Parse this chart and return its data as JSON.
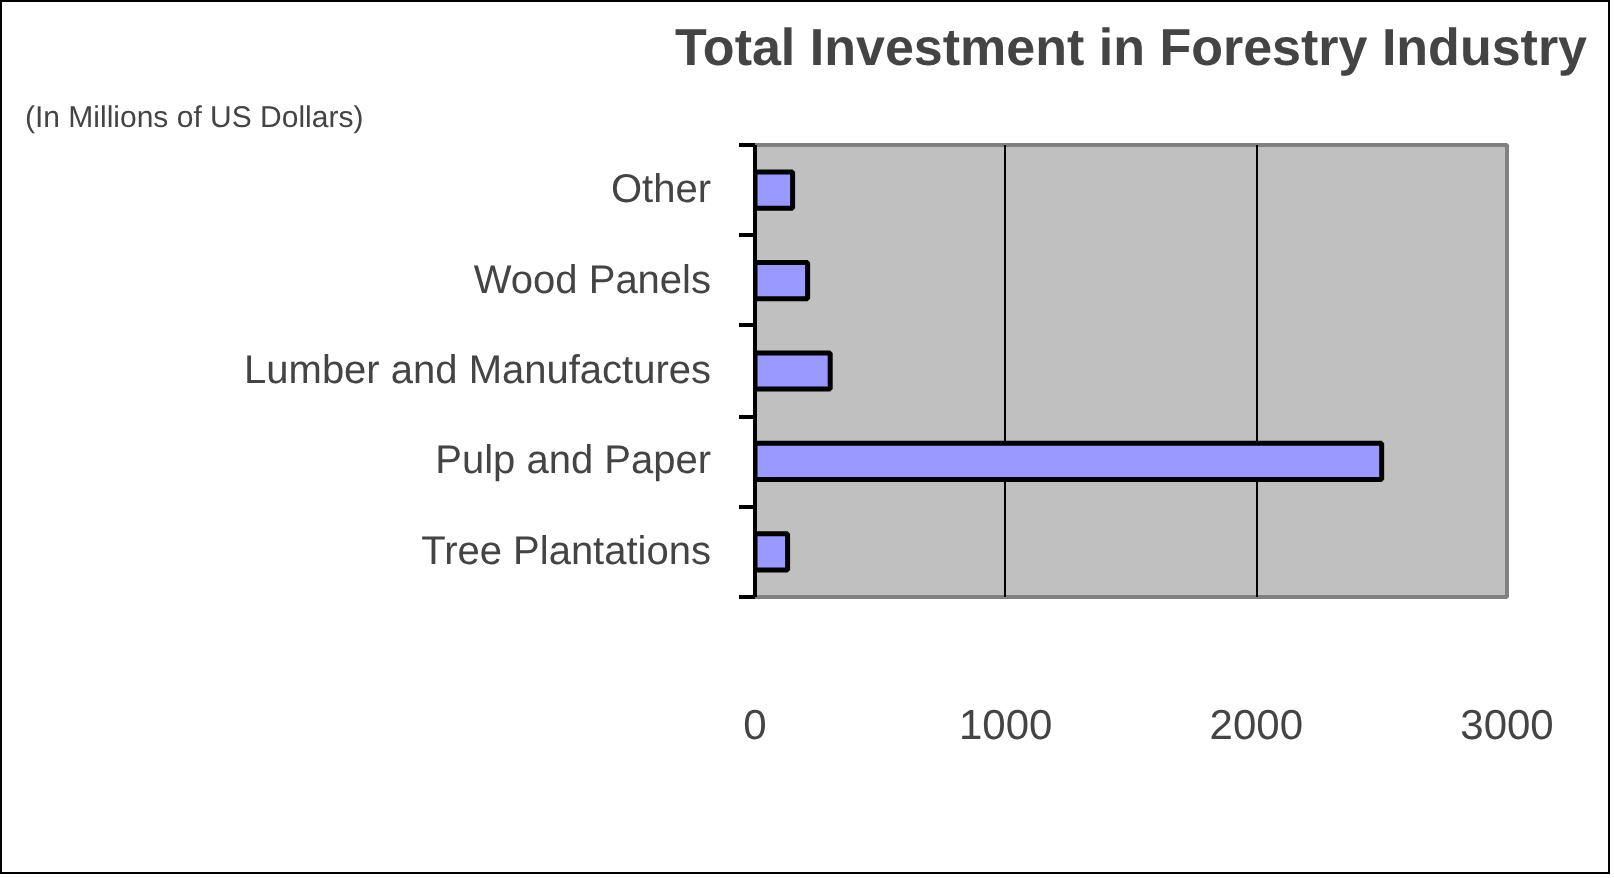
{
  "chart_data": {
    "type": "bar",
    "orientation": "horizontal",
    "title": "Total Investment in Forestry Industry",
    "subtitle": "(In Millions of US Dollars)",
    "categories": [
      "Other",
      "Wood Panels",
      "Lumber and Manufactures",
      "Pulp and Paper",
      "Tree Plantations"
    ],
    "values": [
      150,
      210,
      300,
      2500,
      130
    ],
    "color": "#9999ff",
    "xlim": [
      0,
      3000
    ],
    "xticks": [
      0,
      1000,
      2000,
      3000
    ],
    "grid": "x"
  }
}
